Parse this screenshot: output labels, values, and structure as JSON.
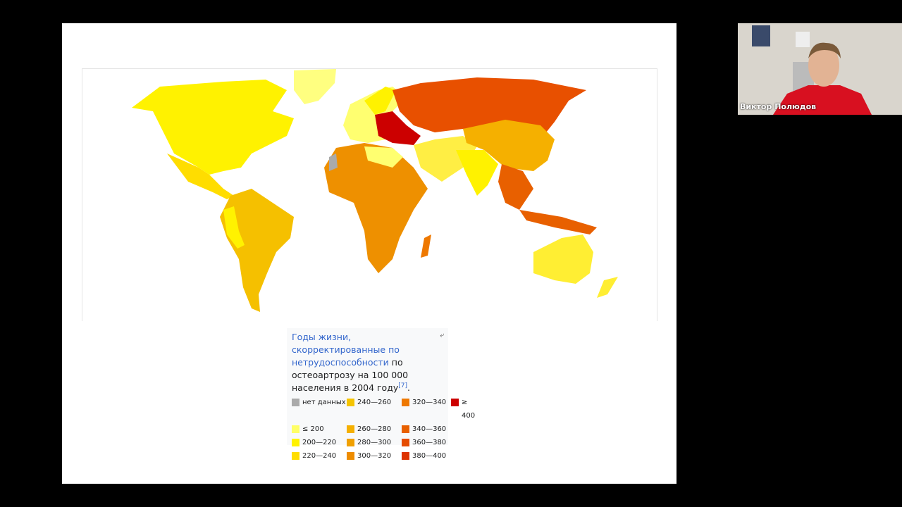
{
  "slide": {
    "caption": {
      "link": "Годы жизни, скорректированные по нетрудоспособности",
      "text": " по остеоартрозу на 100 000 населения в 2004 году",
      "ref": "[7]",
      "end": "."
    },
    "legend": [
      {
        "label": "нет данных",
        "color": "#aaaaaa"
      },
      {
        "label": "≤ 200",
        "color": "#ffff66"
      },
      {
        "label": "200—220",
        "color": "#fff200"
      },
      {
        "label": "220—240",
        "color": "#ffdd00"
      },
      {
        "label": "240—260",
        "color": "#f5c400"
      },
      {
        "label": "260—280",
        "color": "#f5b000"
      },
      {
        "label": "280—300",
        "color": "#f0a000"
      },
      {
        "label": "300—320",
        "color": "#ee8c00"
      },
      {
        "label": "320—340",
        "color": "#ee7800"
      },
      {
        "label": "340—360",
        "color": "#e86000"
      },
      {
        "label": "360—380",
        "color": "#e54c00"
      },
      {
        "label": "380—400",
        "color": "#dd3300"
      },
      {
        "label": "≥ 400",
        "color": "#cc0000"
      }
    ]
  },
  "participant": {
    "name": "Виктор Полюдов"
  }
}
